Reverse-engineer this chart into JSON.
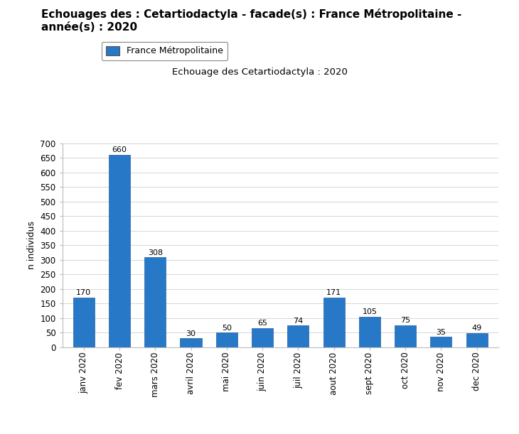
{
  "title": "Echouages des : Cetartiodactyla - facade(s) : France Métropolitaine -\nannée(s) : 2020",
  "subtitle": "Echouage des Cetartiodactyla : 2020",
  "legend_label": "France Métropolitaine",
  "ylabel": "n individus",
  "categories": [
    "janv 2020",
    "fev 2020",
    "mars 2020",
    "avril 2020",
    "mai 2020",
    "juin 2020",
    "juil 2020",
    "aout 2020",
    "sept 2020",
    "oct 2020",
    "nov 2020",
    "dec 2020"
  ],
  "values": [
    170,
    660,
    308,
    30,
    50,
    65,
    74,
    171,
    105,
    75,
    35,
    49
  ],
  "bar_color": "#2878C8",
  "bar_edge_color": "#2060a0",
  "ylim": [
    0,
    700
  ],
  "yticks": [
    0,
    50,
    100,
    150,
    200,
    250,
    300,
    350,
    400,
    450,
    500,
    550,
    600,
    650,
    700
  ],
  "background_color": "#ffffff",
  "title_fontsize": 11,
  "subtitle_fontsize": 9.5,
  "label_fontsize": 9,
  "tick_fontsize": 8.5,
  "value_fontsize": 8
}
